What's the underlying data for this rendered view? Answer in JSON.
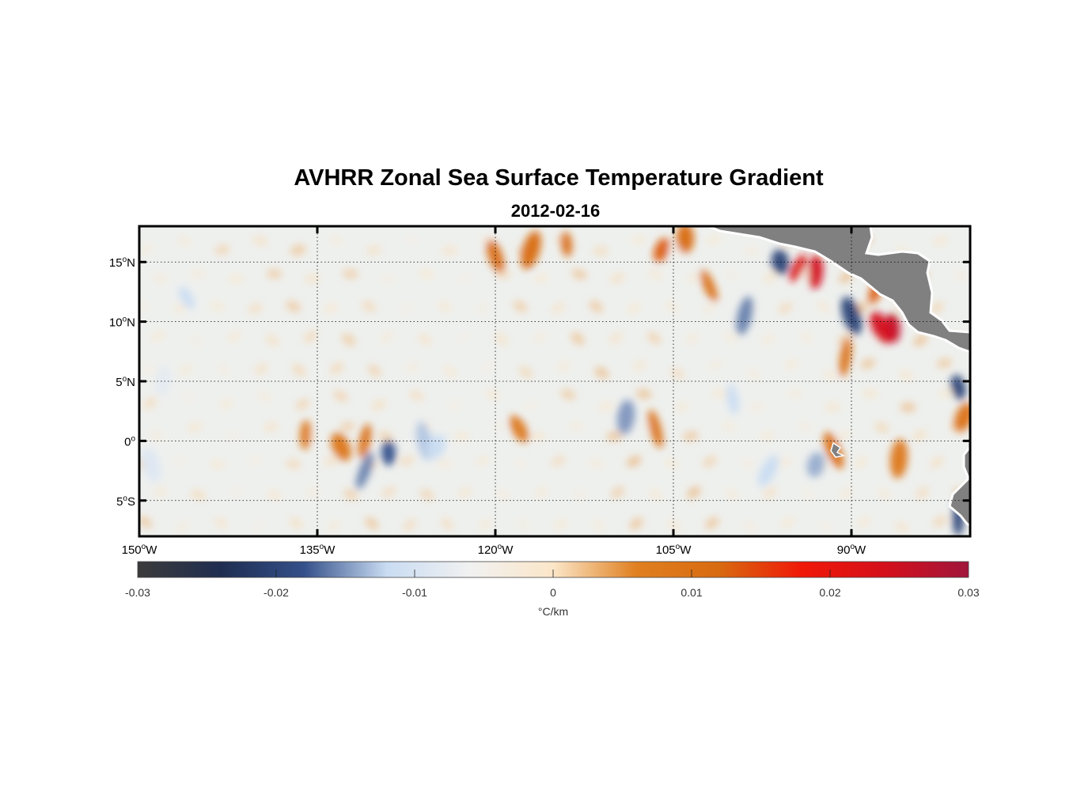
{
  "map": {
    "title": "AVHRR Zonal Sea Surface Temperature Gradient",
    "subtitle": "2012-02-16",
    "lon_range": [
      -150,
      -80
    ],
    "lat_range": [
      -8,
      18
    ],
    "lon_ticks": [
      {
        "value": -150,
        "deg": "150",
        "hemi": "W"
      },
      {
        "value": -135,
        "deg": "135",
        "hemi": "W"
      },
      {
        "value": -120,
        "deg": "120",
        "hemi": "W"
      },
      {
        "value": -105,
        "deg": "105",
        "hemi": "W"
      },
      {
        "value": -90,
        "deg": "90",
        "hemi": "W"
      }
    ],
    "lat_ticks": [
      {
        "value": 15,
        "deg": "15",
        "hemi": "N"
      },
      {
        "value": 10,
        "deg": "10",
        "hemi": "N"
      },
      {
        "value": 5,
        "deg": "5",
        "hemi": "N"
      },
      {
        "value": 0,
        "deg": "0",
        "hemi": ""
      },
      {
        "value": -5,
        "deg": "5",
        "hemi": "S"
      }
    ],
    "grid": "dotted",
    "land_color": "#808080"
  },
  "colorbar": {
    "range": [
      -0.03,
      0.03
    ],
    "ticks": [
      -0.03,
      -0.02,
      -0.01,
      0,
      0.01,
      0.02,
      0.03
    ],
    "tick_labels": [
      "-0.03",
      "-0.02",
      "-0.01",
      "0",
      "0.01",
      "0.02",
      "0.03"
    ],
    "unit": "°C/km",
    "colors": [
      "#3b3b3b",
      "#1f2d50",
      "#34508a",
      "#c9dcf2",
      "#f1f1f1",
      "#fbe6c8",
      "#e08020",
      "#d86a10",
      "#f01808",
      "#d4101c",
      "#a0163c"
    ]
  },
  "features": [
    {
      "lon": -146,
      "lat": 12,
      "value": -0.012
    },
    {
      "lon": -148,
      "lat": 5,
      "value": -0.008
    },
    {
      "lon": -149,
      "lat": -2,
      "value": -0.009
    },
    {
      "lon": -131,
      "lat": -2.5,
      "value": -0.016
    },
    {
      "lon": -129,
      "lat": -1,
      "value": -0.018
    },
    {
      "lon": -133,
      "lat": -0.5,
      "value": 0.009
    },
    {
      "lon": -131,
      "lat": 0,
      "value": 0.01
    },
    {
      "lon": -126,
      "lat": 0,
      "value": -0.013
    },
    {
      "lon": -125,
      "lat": -0.5,
      "value": -0.012
    },
    {
      "lon": -136,
      "lat": 0.5,
      "value": 0.008
    },
    {
      "lon": -120,
      "lat": 15.5,
      "value": 0.011
    },
    {
      "lon": -117,
      "lat": 16,
      "value": 0.012
    },
    {
      "lon": -114,
      "lat": 16.5,
      "value": 0.011
    },
    {
      "lon": -118,
      "lat": 1,
      "value": 0.008
    },
    {
      "lon": -109,
      "lat": 2,
      "value": -0.015
    },
    {
      "lon": -106.5,
      "lat": 1,
      "value": 0.01
    },
    {
      "lon": -106,
      "lat": 16,
      "value": 0.013
    },
    {
      "lon": -104,
      "lat": 17,
      "value": 0.012
    },
    {
      "lon": -102,
      "lat": 13,
      "value": 0.01
    },
    {
      "lon": -99,
      "lat": 10.5,
      "value": -0.016
    },
    {
      "lon": -96,
      "lat": 15,
      "value": -0.02
    },
    {
      "lon": -94.5,
      "lat": 14.5,
      "value": 0.022
    },
    {
      "lon": -93,
      "lat": 14.2,
      "value": 0.024
    },
    {
      "lon": -90,
      "lat": 10.5,
      "value": -0.02
    },
    {
      "lon": -88,
      "lat": 12.5,
      "value": 0.013
    },
    {
      "lon": -86.5,
      "lat": 9.5,
      "value": 0.026
    },
    {
      "lon": -87.5,
      "lat": 9.5,
      "value": 0.024
    },
    {
      "lon": -90.5,
      "lat": 7,
      "value": 0.01
    },
    {
      "lon": -81,
      "lat": 4.5,
      "value": -0.02
    },
    {
      "lon": -80.5,
      "lat": 2,
      "value": 0.01
    },
    {
      "lon": -81,
      "lat": -6.5,
      "value": -0.02
    },
    {
      "lon": -91.5,
      "lat": -0.8,
      "value": 0.01
    },
    {
      "lon": -93,
      "lat": -2,
      "value": -0.014
    },
    {
      "lon": -100,
      "lat": 3.5,
      "value": -0.012
    },
    {
      "lon": -97,
      "lat": -2.5,
      "value": -0.012
    },
    {
      "lon": -86,
      "lat": -1.5,
      "value": 0.008
    }
  ]
}
